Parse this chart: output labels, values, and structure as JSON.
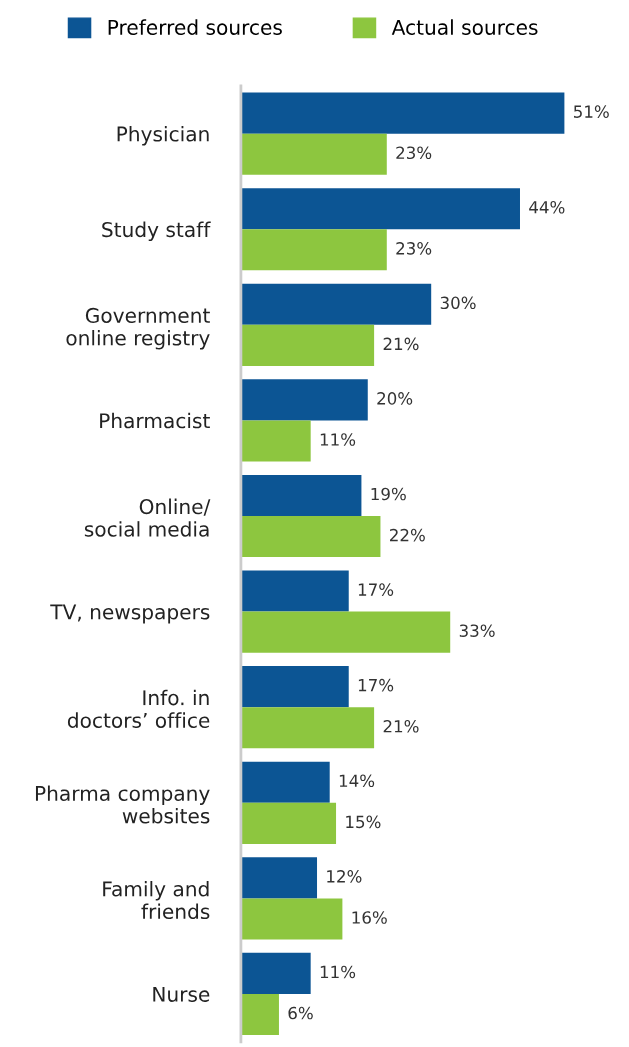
{
  "chart_data": {
    "type": "bar",
    "orientation": "horizontal",
    "legend": "top left",
    "grid": false,
    "categories": [
      "Physician",
      "Study staff",
      "Government\nonline registry",
      "Pharmacist",
      "Online/\nsocial media",
      "TV, newspapers",
      "Info. in\ndoctors’ office",
      "Pharma company\nwebsites",
      "Family and\nfriends",
      "Nurse"
    ],
    "series": [
      {
        "name": "Preferred sources",
        "color": "#0c5594",
        "values": [
          51,
          44,
          30,
          20,
          19,
          17,
          17,
          14,
          12,
          11
        ],
        "value_labels": [
          "51%",
          "44%",
          "30%",
          "20%",
          "19%",
          "17%",
          "17%",
          "14%",
          "12%",
          "11%"
        ]
      },
      {
        "name": "Actual sources",
        "color": "#8dc63f",
        "values": [
          23,
          23,
          21,
          11,
          22,
          33,
          21,
          15,
          16,
          6
        ],
        "value_labels": [
          "23%",
          "23%",
          "21%",
          "11%",
          "22%",
          "33%",
          "21%",
          "15%",
          "16%",
          "6%"
        ]
      }
    ]
  }
}
